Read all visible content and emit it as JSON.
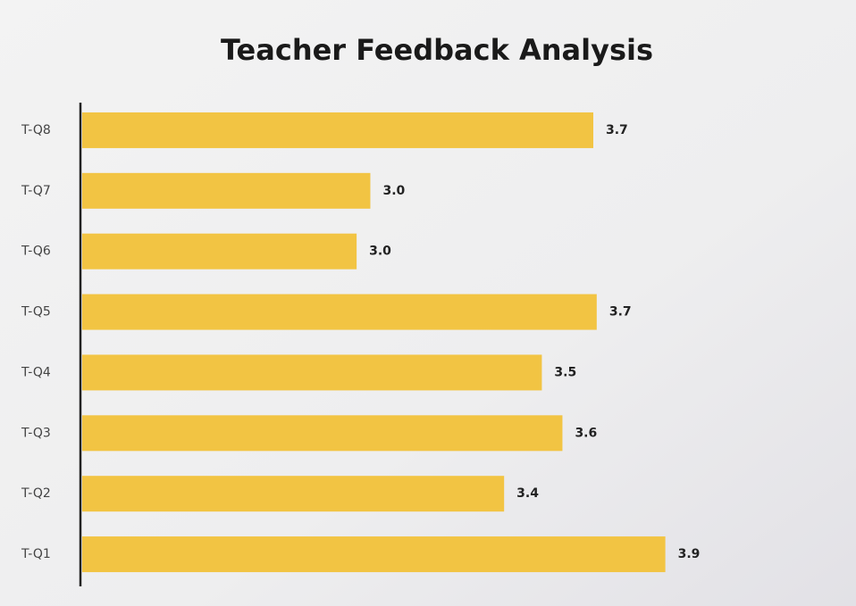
{
  "chart_data": {
    "type": "barh",
    "title": "Teacher Feedback Analysis",
    "categories": [
      "T-Q8",
      "T-Q7",
      "T-Q6",
      "T-Q5",
      "T-Q4",
      "T-Q3",
      "T-Q2",
      "T-Q1"
    ],
    "values": [
      3.69,
      3.04,
      3.0,
      3.7,
      3.54,
      3.6,
      3.43,
      3.9
    ],
    "value_labels": [
      "3.7",
      "3.0",
      "3.0",
      "3.7",
      "3.5",
      "3.6",
      "3.4",
      "3.9"
    ],
    "color": "#f2c443",
    "xlim": [
      2.2,
      4.0
    ]
  }
}
